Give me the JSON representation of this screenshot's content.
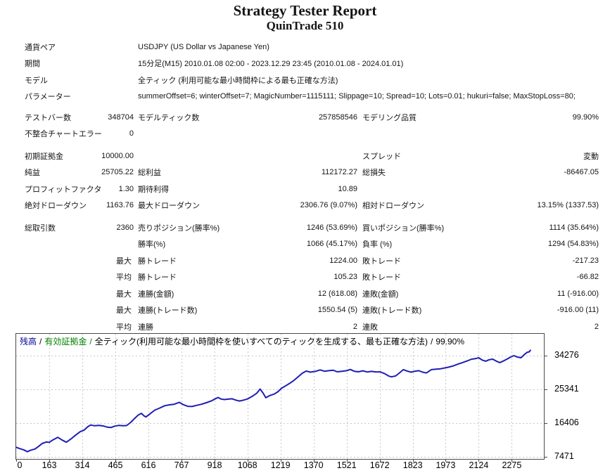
{
  "header": {
    "title": "Strategy Tester Report",
    "subtitle": "QuinTrade 510"
  },
  "report": {
    "rows": [
      {
        "l1": "通貨ペア",
        "l2": "USDJPY (US Dollar vs Japanese Yen)"
      },
      {
        "l1": "期間",
        "l2": "15分足(M15) 2010.01.08 02:00 - 2023.12.29 23:45 (2010.01.08 - 2024.01.01)"
      },
      {
        "l1": "モデル",
        "l2": "全ティック (利用可能な最小時間枠による最も正確な方法)"
      },
      {
        "l1": "パラメーター",
        "l2": "summerOffset=6; winterOffset=7; MagicNumber=1115111; Slippage=10; Spread=10; Lots=0.01; hukuri=false; MaxStopLoss=80;"
      },
      {
        "spacer": "6"
      },
      {
        "l1": "テストバー数",
        "v1": "348704",
        "l2": "モデルティック数",
        "v2": "257858546",
        "l3": "モデリング品質",
        "v3": "99.90%"
      },
      {
        "l1": "不整合チャートエラー",
        "v1": "0"
      },
      {
        "spacer": "8"
      },
      {
        "l1": "初期証拠金",
        "v1": "10000.00",
        "l3": "スプレッド",
        "v3": "変動"
      },
      {
        "l1": "純益",
        "v1": "25705.22",
        "l2": "総利益",
        "v2": "112172.27",
        "l3": "総損失",
        "v3": "-86467.05"
      },
      {
        "l1": "プロフィットファクタ",
        "v1": "1.30",
        "l2": "期待利得",
        "v2": "10.89"
      },
      {
        "l1": "絶対ドローダウン",
        "v1": "1163.76",
        "l2": "最大ドローダウン",
        "v2": "2306.76 (9.07%)",
        "l3": "相対ドローダウン",
        "v3": "13.15% (1337.53)"
      },
      {
        "spacer": "8"
      },
      {
        "l1": "総取引数",
        "v1": "2360",
        "l2": "売りポジション(勝率%)",
        "v2": "1246 (53.69%)",
        "l3": "買いポジション(勝率%)",
        "v3": "1114 (35.64%)"
      },
      {
        "l2": "勝率(%)",
        "v2": "1066 (45.17%)",
        "l3": "負率 (%)",
        "v3": "1294 (54.83%)"
      },
      {
        "p1": "最大",
        "l2": "勝トレード",
        "v2": "1224.00",
        "l3": "敗トレード",
        "v3": "-217.23"
      },
      {
        "p1": "平均",
        "l2": "勝トレード",
        "v2": "105.23",
        "l3": "敗トレード",
        "v3": "-66.82"
      },
      {
        "p1": "最大",
        "l2": "連勝(金額)",
        "v2": "12 (618.08)",
        "l3": "連敗(金額)",
        "v3": "11 (-916.00)"
      },
      {
        "p1": "最大",
        "l2": "連勝(トレード数)",
        "v2": "1550.54 (5)",
        "l3": "連敗(トレード数)",
        "v3": "-916.00 (11)"
      },
      {
        "p1": "平均",
        "l2": "連勝",
        "v2": "2",
        "l3": "連敗",
        "v3": "2"
      }
    ]
  },
  "chart_data": {
    "type": "line",
    "legend": {
      "balance_label": "残高",
      "equity_label": "有効証拠金",
      "model_label": "全ティック(利用可能な最小時間枠を使いすべてのティックを生成する、最も正確な方法)",
      "quality": "99.90%",
      "sep": "/"
    },
    "x_ticks": [
      0,
      163,
      314,
      465,
      616,
      767,
      918,
      1068,
      1219,
      1370,
      1521,
      1672,
      1823,
      1973,
      2124,
      2275
    ],
    "y_ticks": [
      34276,
      25341,
      16406,
      7471
    ],
    "ylim": [
      7471,
      40500
    ],
    "xlim": [
      0,
      2425
    ],
    "grid": "dashed",
    "series": [
      {
        "name": "残高",
        "points": [
          [
            0,
            10000
          ],
          [
            18,
            9650
          ],
          [
            38,
            9300
          ],
          [
            55,
            8836
          ],
          [
            70,
            9200
          ],
          [
            93,
            9550
          ],
          [
            112,
            10300
          ],
          [
            128,
            11000
          ],
          [
            148,
            11400
          ],
          [
            163,
            11300
          ],
          [
            178,
            11900
          ],
          [
            202,
            12650
          ],
          [
            222,
            11900
          ],
          [
            241,
            11350
          ],
          [
            262,
            12200
          ],
          [
            285,
            13300
          ],
          [
            305,
            14150
          ],
          [
            321,
            14500
          ],
          [
            338,
            15400
          ],
          [
            352,
            15900
          ],
          [
            370,
            15700
          ],
          [
            390,
            15800
          ],
          [
            410,
            15650
          ],
          [
            430,
            15300
          ],
          [
            446,
            15250
          ],
          [
            462,
            15600
          ],
          [
            480,
            15800
          ],
          [
            500,
            15700
          ],
          [
            516,
            15750
          ],
          [
            535,
            16600
          ],
          [
            552,
            17600
          ],
          [
            568,
            18500
          ],
          [
            584,
            19000
          ],
          [
            596,
            18300
          ],
          [
            605,
            18050
          ],
          [
            622,
            18800
          ],
          [
            645,
            19850
          ],
          [
            668,
            20400
          ],
          [
            690,
            21000
          ],
          [
            712,
            21250
          ],
          [
            733,
            21400
          ],
          [
            757,
            21900
          ],
          [
            775,
            21300
          ],
          [
            795,
            20850
          ],
          [
            815,
            20800
          ],
          [
            835,
            21100
          ],
          [
            858,
            21400
          ],
          [
            880,
            21800
          ],
          [
            902,
            22260
          ],
          [
            920,
            22800
          ],
          [
            934,
            23200
          ],
          [
            947,
            22800
          ],
          [
            962,
            22650
          ],
          [
            980,
            22750
          ],
          [
            998,
            22850
          ],
          [
            1015,
            22500
          ],
          [
            1032,
            22260
          ],
          [
            1050,
            22500
          ],
          [
            1068,
            22800
          ],
          [
            1090,
            23500
          ],
          [
            1110,
            24300
          ],
          [
            1126,
            25430
          ],
          [
            1140,
            24300
          ],
          [
            1152,
            23130
          ],
          [
            1170,
            23700
          ],
          [
            1190,
            24100
          ],
          [
            1207,
            24700
          ],
          [
            1223,
            25600
          ],
          [
            1243,
            26300
          ],
          [
            1261,
            26950
          ],
          [
            1280,
            27700
          ],
          [
            1300,
            28700
          ],
          [
            1318,
            29600
          ],
          [
            1337,
            30200
          ],
          [
            1355,
            29900
          ],
          [
            1378,
            30100
          ],
          [
            1400,
            30500
          ],
          [
            1420,
            30150
          ],
          [
            1440,
            30300
          ],
          [
            1460,
            30400
          ],
          [
            1478,
            30000
          ],
          [
            1500,
            30150
          ],
          [
            1521,
            30300
          ],
          [
            1538,
            30600
          ],
          [
            1555,
            30150
          ],
          [
            1575,
            30000
          ],
          [
            1595,
            30250
          ],
          [
            1615,
            29950
          ],
          [
            1635,
            30100
          ],
          [
            1655,
            29950
          ],
          [
            1674,
            30000
          ],
          [
            1695,
            29500
          ],
          [
            1712,
            28900
          ],
          [
            1726,
            28650
          ],
          [
            1745,
            28900
          ],
          [
            1762,
            29700
          ],
          [
            1780,
            30580
          ],
          [
            1797,
            30200
          ],
          [
            1815,
            29900
          ],
          [
            1832,
            30150
          ],
          [
            1850,
            30300
          ],
          [
            1868,
            29900
          ],
          [
            1885,
            29680
          ],
          [
            1908,
            30580
          ],
          [
            1930,
            30700
          ],
          [
            1950,
            30800
          ],
          [
            1963,
            30950
          ],
          [
            1985,
            31200
          ],
          [
            2005,
            31500
          ],
          [
            2028,
            32000
          ],
          [
            2050,
            32430
          ],
          [
            2072,
            32900
          ],
          [
            2092,
            33350
          ],
          [
            2110,
            33500
          ],
          [
            2124,
            33720
          ],
          [
            2140,
            33100
          ],
          [
            2156,
            32800
          ],
          [
            2172,
            33200
          ],
          [
            2188,
            33350
          ],
          [
            2205,
            32800
          ],
          [
            2220,
            32430
          ],
          [
            2238,
            32900
          ],
          [
            2253,
            33350
          ],
          [
            2270,
            33900
          ],
          [
            2285,
            34280
          ],
          [
            2300,
            33900
          ],
          [
            2317,
            33720
          ],
          [
            2333,
            34600
          ],
          [
            2345,
            35150
          ],
          [
            2355,
            35300
          ],
          [
            2360,
            35705
          ]
        ]
      }
    ]
  },
  "colors": {
    "balance_text": "#000096",
    "equity_text": "#008000",
    "curve": "#1e1eb4",
    "grid": "#c9c9c9",
    "chart_border": "#4a4a4a",
    "text": "#141414"
  }
}
